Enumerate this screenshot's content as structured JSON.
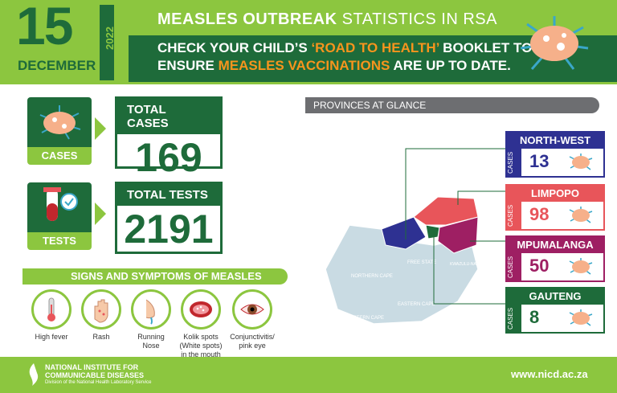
{
  "header": {
    "day": "15",
    "month": "DECEMBER",
    "year": "2022",
    "title_bold": "MEASLES OUTBREAK",
    "title_thin": " STATISTICS IN RSA",
    "sub_line1_a": "CHECK YOUR CHILD’S ",
    "sub_line1_hl": "‘ROAD TO HEALTH’",
    "sub_line1_b": " BOOKLET TO",
    "sub_line2_a": "ENSURE ",
    "sub_line2_hl": "MEASLES VACCINATIONS",
    "sub_line2_b": " ARE UP TO DATE."
  },
  "stats": {
    "cases_label": "CASES",
    "total_cases_title": "TOTAL CASES",
    "total_cases": "169",
    "tests_label": "TESTS",
    "total_tests_title": "TOTAL TESTS",
    "total_tests": "2191"
  },
  "symptoms": {
    "title": "SIGNS AND SYMPTOMS OF MEASLES",
    "items": [
      {
        "line1": "High fever",
        "line2": "",
        "line3": ""
      },
      {
        "line1": "Rash",
        "line2": "",
        "line3": ""
      },
      {
        "line1": "Running",
        "line2": "Nose",
        "line3": ""
      },
      {
        "line1": "Kolik spots",
        "line2": "(White spots)",
        "line3": "in the mouth"
      },
      {
        "line1": "Conjunctivitis/",
        "line2": "pink eye",
        "line3": ""
      }
    ]
  },
  "provinces": {
    "title": "PROVINCES AT GLANCE",
    "cases_word": "CASES",
    "map_labels": [
      "FREE STATE",
      "KWAZULU-NATAL",
      "NORTHERN CAPE",
      "EASTERN CAPE",
      "WESTERN CAPE"
    ],
    "cards": [
      {
        "name": "NORTH-WEST",
        "value": "13",
        "color": "#2e3192"
      },
      {
        "name": "LIMPOPO",
        "value": "98",
        "color": "#e8555a"
      },
      {
        "name": "MPUMALANGA",
        "value": "50",
        "color": "#9e1f63"
      },
      {
        "name": "GAUTENG",
        "value": "8",
        "color": "#1e6b3a"
      }
    ]
  },
  "footer": {
    "org_line1": "NATIONAL INSTITUTE FOR",
    "org_line2": "COMMUNICABLE DISEASES",
    "org_line3": "Division of the National Health Laboratory Service",
    "url": "www.nicd.ac.za"
  },
  "colors": {
    "green_light": "#8cc63f",
    "green_dark": "#1e6b3a",
    "orange": "#f7941d",
    "north_west": "#2e3192",
    "limpopo": "#e8555a",
    "mpumalanga": "#9e1f63",
    "gauteng": "#1e6b3a"
  }
}
